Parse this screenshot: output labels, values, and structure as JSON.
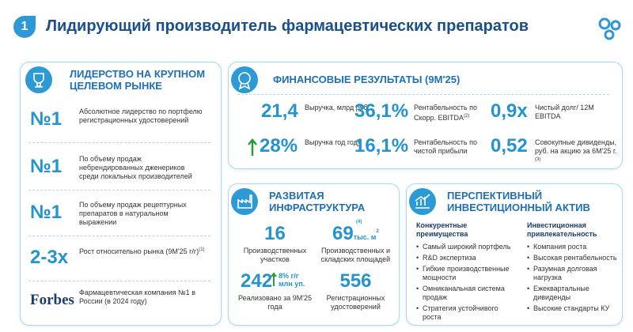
{
  "header": {
    "number": "1",
    "title": "Лидирующий производитель фармацевтических препаратов"
  },
  "leadership": {
    "title": "ЛИДЕРСТВО НА КРУПНОМ ЦЕЛЕВОМ РЫНКЕ",
    "items": [
      {
        "value": "№1",
        "text": "Абсолютное лидерство по портфелю регистрационных удостоверений"
      },
      {
        "value": "№1",
        "text": "По объему продаж небрендированных дженериков среди локальных производителей"
      },
      {
        "value": "№1",
        "text": "По объему продаж рецептурных препаратов в натуральном выражении"
      },
      {
        "value": "2-3x",
        "text": "Рост относительно рынка (9М'25 г/г)",
        "note": "(1)"
      },
      {
        "value": "Forbes",
        "text": "Фармацевтическая компания №1 в России (в 2024 году)"
      }
    ]
  },
  "financial": {
    "title": "ФИНАНСОВЫЕ РЕЗУЛЬТАТЫ (9М'25)",
    "metrics": [
      {
        "value": "21,4",
        "label": "Выручка, млрд руб."
      },
      {
        "value": "36,1%",
        "label": "Рентабельность по Скорр. EBITDA",
        "note": "(2)"
      },
      {
        "value": "0,9x",
        "label": "Чистый долг/ 12M EBITDA"
      },
      {
        "value": "28%",
        "label": "Выручка год году"
      },
      {
        "value": "16,1%",
        "label": "Рентабельность по чистой прибыли"
      },
      {
        "value": "0,52",
        "label": "Совокупные дивиденды, руб. на акцию за 6М'25 г.",
        "note": "(3)"
      }
    ]
  },
  "infrastructure": {
    "title": "РАЗВИТАЯ ИНФРАСТРУКТУРА",
    "items": [
      {
        "value": "16",
        "label": "Производственных участков"
      },
      {
        "value": "69",
        "unit": "тыс. м",
        "unit_sup": "2",
        "note": "(4)",
        "label": "Производственных и складских площадей"
      },
      {
        "value": "242",
        "growth": "8% г/г",
        "unit": "млн уп.",
        "label": "Реализовано за 9М'25 года"
      },
      {
        "value": "556",
        "label": "Регистрационных удостоверений"
      }
    ]
  },
  "investment": {
    "title": "ПЕРСПЕКТИВНЫЙ ИНВЕСТИЦИОННЫЙ АКТИВ",
    "columns": [
      {
        "heading": "Конкурентные преимущества",
        "bullets": [
          "Самый широкий портфель",
          "R&D экспертиза",
          "Гибкие производственные мощности",
          "Омниканальная система продаж",
          "Стратегия устойчивого роста"
        ]
      },
      {
        "heading": "Инвестиционная привлекательность",
        "bullets": [
          "Компания роста",
          "Высокая рентабельность",
          "Разумная долговая нагрузка",
          "Ежеквартальные дивиденды",
          "Высокие стандарты КУ"
        ]
      }
    ]
  }
}
